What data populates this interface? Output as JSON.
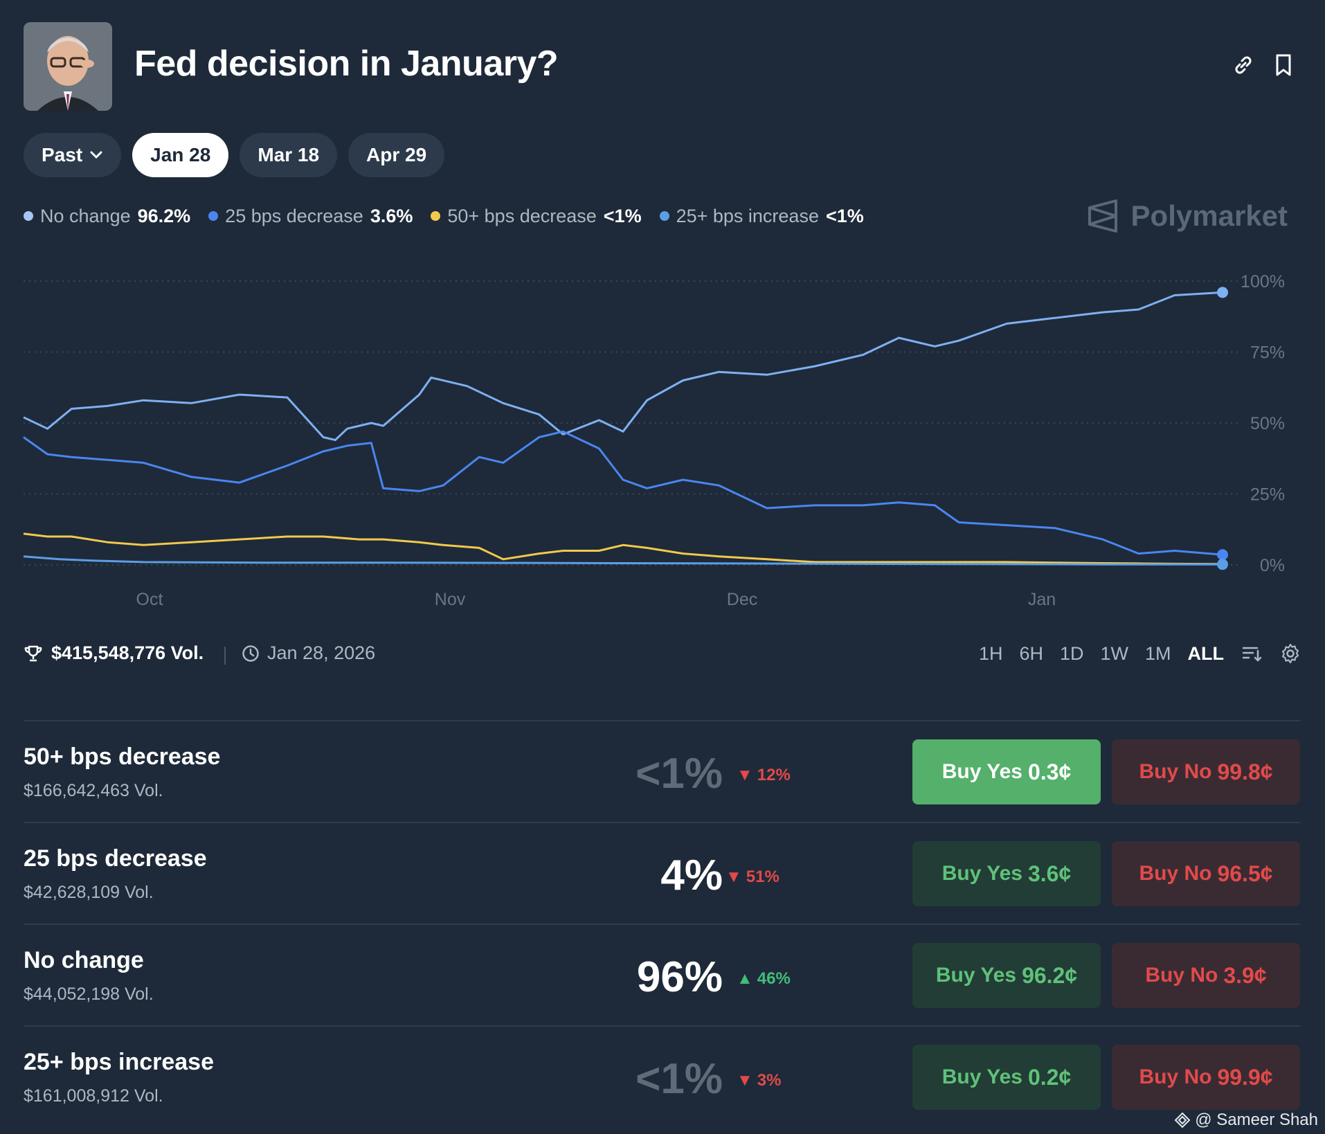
{
  "header": {
    "title": "Fed decision in January?"
  },
  "chips": [
    {
      "label": "Past"
    },
    {
      "label": "Jan 28"
    },
    {
      "label": "Mar 18"
    },
    {
      "label": "Apr 29"
    }
  ],
  "legend": [
    {
      "label": "No change",
      "value": "96.2%",
      "color": "#a7c6f5"
    },
    {
      "label": "25 bps decrease",
      "value": "3.6%",
      "color": "#4a86f0"
    },
    {
      "label": "50+ bps decrease",
      "value": "<1%",
      "color": "#f2c94c"
    },
    {
      "label": "25+ bps increase",
      "value": "<1%",
      "color": "#5b9ee6"
    }
  ],
  "brand": {
    "name": "Polymarket"
  },
  "chart_data": {
    "type": "line",
    "x_ticks": [
      "Oct",
      "Nov",
      "Dec",
      "Jan"
    ],
    "y_ticks": [
      "100%",
      "75%",
      "50%",
      "25%",
      "0%"
    ],
    "ylim": [
      0,
      100
    ],
    "grid": true,
    "series": [
      {
        "name": "No change",
        "color": "#7fb0f2",
        "x": [
          0,
          2,
          4,
          7,
          10,
          14,
          18,
          22,
          25,
          26,
          27,
          29,
          30,
          33,
          34,
          37,
          40,
          43,
          45,
          48,
          50,
          52,
          55,
          58,
          62,
          66,
          70,
          73,
          76,
          78,
          82,
          86,
          90,
          93,
          96,
          100
        ],
        "values": [
          52,
          48,
          55,
          56,
          58,
          57,
          60,
          59,
          45,
          44,
          48,
          50,
          49,
          60,
          66,
          63,
          57,
          53,
          46,
          51,
          47,
          58,
          65,
          68,
          67,
          70,
          74,
          80,
          77,
          79,
          85,
          87,
          89,
          90,
          95,
          96
        ]
      },
      {
        "name": "25 bps decrease",
        "color": "#4a86f0",
        "x": [
          0,
          2,
          4,
          7,
          10,
          14,
          18,
          22,
          25,
          27,
          29,
          30,
          33,
          35,
          38,
          40,
          43,
          45,
          48,
          50,
          52,
          55,
          58,
          62,
          66,
          70,
          73,
          76,
          78,
          82,
          86,
          90,
          93,
          96,
          100
        ],
        "values": [
          45,
          39,
          38,
          37,
          36,
          31,
          29,
          35,
          40,
          42,
          43,
          27,
          26,
          28,
          38,
          36,
          45,
          47,
          41,
          30,
          27,
          30,
          28,
          20,
          21,
          21,
          22,
          21,
          15,
          14,
          13,
          9,
          4,
          5,
          3.6
        ]
      },
      {
        "name": "50+ bps decrease",
        "color": "#f2c94c",
        "x": [
          0,
          2,
          4,
          7,
          10,
          14,
          18,
          22,
          25,
          28,
          30,
          33,
          35,
          38,
          40,
          43,
          45,
          48,
          50,
          52,
          55,
          58,
          62,
          66,
          70,
          73,
          76,
          78,
          82,
          86,
          90,
          93,
          96,
          100
        ],
        "values": [
          11,
          10,
          10,
          8,
          7,
          8,
          9,
          10,
          10,
          9,
          9,
          8,
          7,
          6,
          2,
          4,
          5,
          5,
          7,
          6,
          4,
          3,
          2,
          1,
          1,
          1,
          1,
          1,
          1,
          0.8,
          0.6,
          0.5,
          0.4,
          0.3
        ]
      },
      {
        "name": "25+ bps increase",
        "color": "#5b9ee6",
        "x": [
          0,
          3,
          6,
          10,
          20,
          30,
          40,
          50,
          60,
          70,
          80,
          90,
          100
        ],
        "values": [
          3,
          2,
          1.5,
          1,
          0.8,
          0.8,
          0.7,
          0.6,
          0.5,
          0.4,
          0.3,
          0.2,
          0.2
        ]
      }
    ]
  },
  "stats": {
    "volume": "$415,548,776 Vol.",
    "date": "Jan 28, 2026",
    "ranges": [
      "1H",
      "6H",
      "1D",
      "1W",
      "1M",
      "ALL"
    ]
  },
  "outcomes": [
    {
      "name": "50+ bps decrease",
      "vol": "$166,642,463 Vol.",
      "prob": "<1%",
      "change": "12%",
      "dir": "down",
      "yes_label": "Buy Yes",
      "yes_price": "0.3¢",
      "no_label": "Buy No",
      "no_price": "99.8¢"
    },
    {
      "name": "25 bps decrease",
      "vol": "$42,628,109 Vol.",
      "prob": "4%",
      "change": "51%",
      "dir": "down",
      "yes_label": "Buy Yes",
      "yes_price": "3.6¢",
      "no_label": "Buy No",
      "no_price": "96.5¢"
    },
    {
      "name": "No change",
      "vol": "$44,052,198 Vol.",
      "prob": "96%",
      "change": "46%",
      "dir": "up",
      "yes_label": "Buy Yes",
      "yes_price": "96.2¢",
      "no_label": "Buy No",
      "no_price": "3.9¢"
    },
    {
      "name": "25+ bps increase",
      "vol": "$161,008,912 Vol.",
      "prob": "<1%",
      "change": "3%",
      "dir": "down",
      "yes_label": "Buy Yes",
      "yes_price": "0.2¢",
      "no_label": "Buy No",
      "no_price": "99.9¢"
    }
  ],
  "watermark": "@ Sameer Shah"
}
